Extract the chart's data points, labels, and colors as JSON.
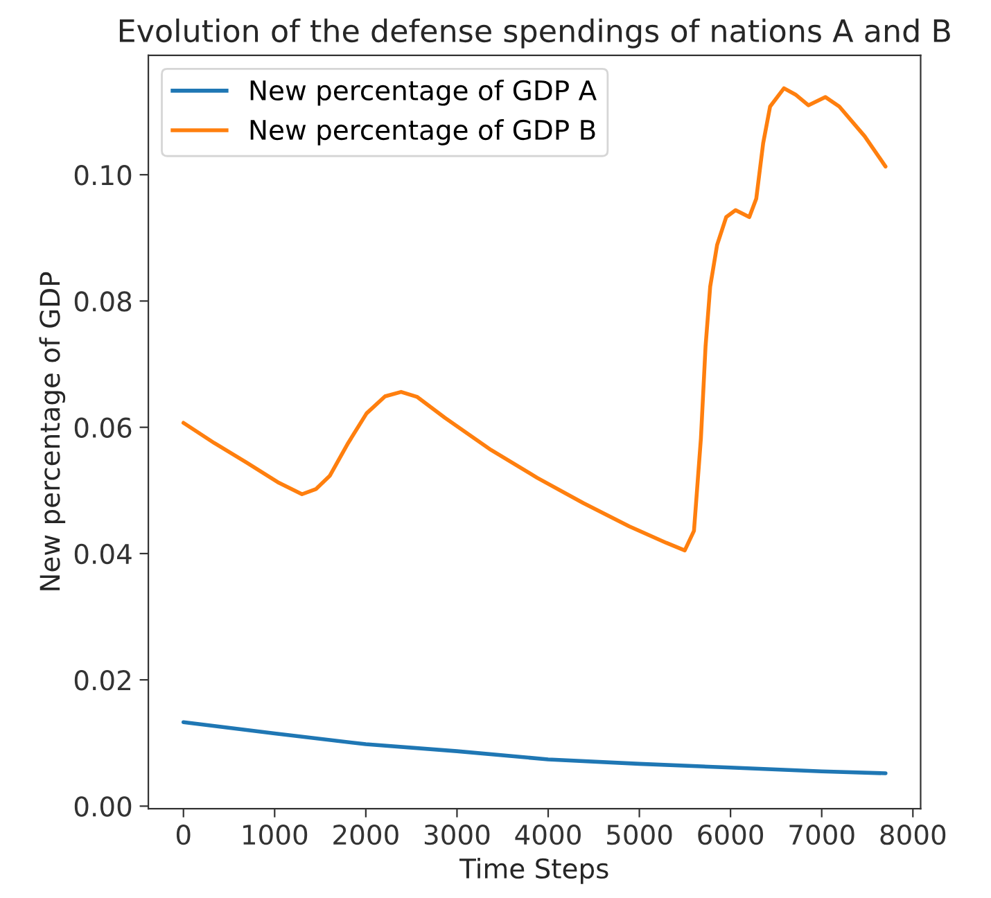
{
  "chart_data": {
    "type": "line",
    "title": "Evolution of the defense spendings of nations A and B",
    "xlabel": "Time Steps",
    "ylabel": "New percentage of GDP",
    "series": [
      {
        "name": "New percentage of GDP A",
        "color": "#1f77b4",
        "x": [
          0,
          1000,
          2000,
          3000,
          4000,
          5000,
          6000,
          7000,
          7700
        ],
        "values": [
          0.0133,
          0.0115,
          0.0098,
          0.0087,
          0.0074,
          0.0067,
          0.0061,
          0.0055,
          0.0052
        ]
      },
      {
        "name": "New percentage of GDP B",
        "color": "#ff7f0e",
        "x": [
          0,
          339,
          693,
          1047,
          1300,
          1452,
          1604,
          1806,
          2008,
          2211,
          2387,
          2565,
          2868,
          3374,
          3880,
          4385,
          4891,
          5296,
          5498,
          5599,
          5675,
          5726,
          5777,
          5853,
          5953,
          6055,
          6206,
          6282,
          6358,
          6434,
          6586,
          6712,
          6854,
          7041,
          7193,
          7471,
          7700
        ],
        "values": [
          0.0607,
          0.0575,
          0.0544,
          0.0512,
          0.0494,
          0.0502,
          0.0523,
          0.0575,
          0.0622,
          0.0649,
          0.0656,
          0.0648,
          0.0615,
          0.0564,
          0.052,
          0.048,
          0.0443,
          0.0417,
          0.0405,
          0.0436,
          0.0582,
          0.0728,
          0.0823,
          0.0889,
          0.0933,
          0.0944,
          0.0933,
          0.0962,
          0.105,
          0.1108,
          0.1137,
          0.1127,
          0.111,
          0.1123,
          0.1108,
          0.1061,
          0.1013
        ]
      }
    ],
    "xlim": [
      -385,
      8085
    ],
    "ylim": [
      -0.0004,
      0.1189
    ],
    "xticks": [
      0,
      1000,
      2000,
      3000,
      4000,
      5000,
      6000,
      7000,
      8000
    ],
    "yticks": [
      {
        "value": 0,
        "label": "0.00"
      },
      {
        "value": 0.02,
        "label": "0.02"
      },
      {
        "value": 0.04,
        "label": "0.04"
      },
      {
        "value": 0.06,
        "label": "0.06"
      },
      {
        "value": 0.08,
        "label": "0.08"
      },
      {
        "value": 0.1,
        "label": "0.10"
      }
    ],
    "legend": "top left",
    "grid": false,
    "line_style": "solid",
    "marker": "none"
  }
}
